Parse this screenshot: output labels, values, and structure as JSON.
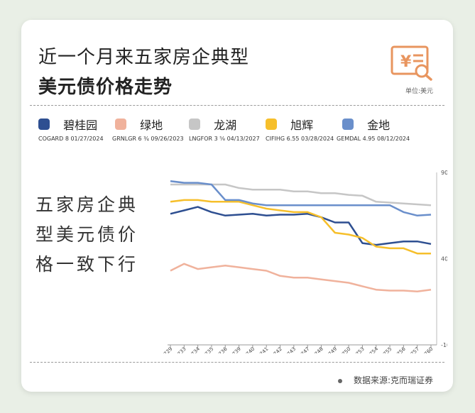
{
  "title_line1": "近一个月来五家房企典型",
  "title_line2": "美元债价格走势",
  "unit": "单位:美元",
  "legend": [
    {
      "name": "碧桂园",
      "bond": "COGARD 8 01/27/2024",
      "color": "#2e4f91"
    },
    {
      "name": "绿地",
      "bond": "GRNLGR 6 ¾ 09/26/2023",
      "color": "#f0b29c"
    },
    {
      "name": "龙湖",
      "bond": "LNGFOR 3 ⅝ 04/13/2027",
      "color": "#c6c6c6"
    },
    {
      "name": "旭辉",
      "bond": "CIFIHG 6.55 03/28/2024",
      "color": "#f6bf2b"
    },
    {
      "name": "金地",
      "bond": "GEMDAL 4.95 08/12/2024",
      "color": "#6a8fcb"
    }
  ],
  "conclusion": "五家房企典型美元债价格一致下行",
  "source": "数据来源:克而瑞证券",
  "chart_data": {
    "type": "line",
    "x": [
      "44729",
      "44733",
      "44734",
      "44735",
      "44736",
      "44739",
      "44740",
      "44741",
      "44742",
      "44743",
      "44747",
      "44748",
      "44749",
      "44750",
      "44753",
      "44754",
      "44755",
      "44756",
      "44757",
      "44760"
    ],
    "ylim": [
      -10,
      90
    ],
    "yticks": [
      90,
      40,
      -10
    ],
    "grid": false,
    "series": [
      {
        "name": "碧桂园",
        "color": "#2e4f91",
        "values": [
          66,
          68,
          70,
          67,
          65,
          65.5,
          66,
          65,
          65.5,
          65.5,
          66,
          64,
          61,
          61,
          49,
          48,
          49,
          50,
          50,
          48.5
        ]
      },
      {
        "name": "绿地",
        "color": "#f0b29c",
        "values": [
          33,
          37,
          34,
          35,
          36,
          35,
          34,
          33,
          30,
          29,
          29,
          28,
          27,
          26,
          24,
          22,
          21.5,
          21.5,
          21,
          22
        ]
      },
      {
        "name": "龙湖",
        "color": "#c6c6c6",
        "values": [
          83,
          83,
          83,
          83,
          83,
          81,
          80,
          80,
          80,
          79,
          79,
          78,
          78,
          77,
          76.5,
          73,
          72.5,
          72,
          71.5,
          71
        ]
      },
      {
        "name": "旭辉",
        "color": "#f6bf2b",
        "values": [
          73,
          74,
          74,
          73,
          73,
          73,
          71,
          69,
          68,
          67,
          67,
          64,
          55,
          54,
          52,
          47,
          46,
          46,
          43,
          43
        ]
      },
      {
        "name": "金地",
        "color": "#6a8fcb",
        "values": [
          85,
          84,
          84,
          83,
          74,
          74,
          72,
          71,
          71,
          71,
          71,
          71,
          71,
          71,
          71,
          71,
          71,
          67,
          65,
          65.5
        ]
      }
    ]
  }
}
